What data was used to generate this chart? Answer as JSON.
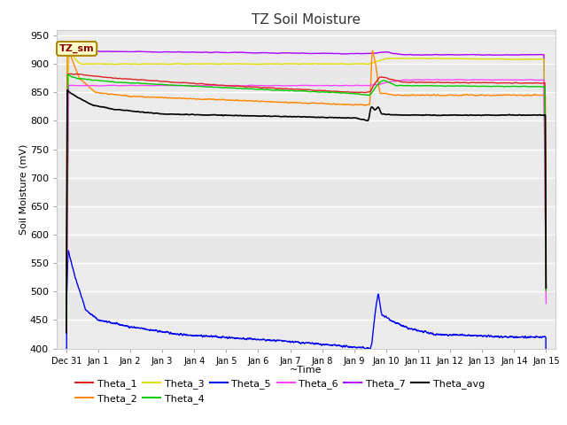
{
  "title": "TZ Soil Moisture",
  "xlabel": "~Time",
  "ylabel": "Soil Moisture (mV)",
  "ylim": [
    400,
    960
  ],
  "yticks": [
    400,
    450,
    500,
    550,
    600,
    650,
    700,
    750,
    800,
    850,
    900,
    950
  ],
  "background_color": "#ffffff",
  "plot_bg_color": "#e8e8e8",
  "legend_label": "TZ_sm",
  "legend_label_color": "#8B0000",
  "legend_label_bg": "#ffffcc",
  "series": {
    "Theta_1": {
      "color": "#dd2222"
    },
    "Theta_2": {
      "color": "#ff8800"
    },
    "Theta_3": {
      "color": "#dddd00"
    },
    "Theta_4": {
      "color": "#00cc00"
    },
    "Theta_5": {
      "color": "#0000ee"
    },
    "Theta_6": {
      "color": "#ff44ff"
    },
    "Theta_7": {
      "color": "#aa00ff"
    },
    "Theta_avg": {
      "color": "#000000"
    }
  },
  "x_start": -0.3,
  "x_end": 15.3,
  "xtick_positions": [
    0,
    1,
    2,
    3,
    4,
    5,
    6,
    7,
    8,
    9,
    10,
    11,
    12,
    13,
    14,
    15
  ],
  "xtick_labels": [
    "Dec 31",
    "Jan 1",
    "Jan 2",
    "Jan 3",
    "Jan 4",
    "Jan 5",
    "Jan 6",
    "Jan 7",
    "Jan 8",
    "Jan 9",
    "Jan 10",
    "Jan 11",
    "Jan 12",
    "Jan 13",
    "Jan 14",
    "Jan 15"
  ]
}
